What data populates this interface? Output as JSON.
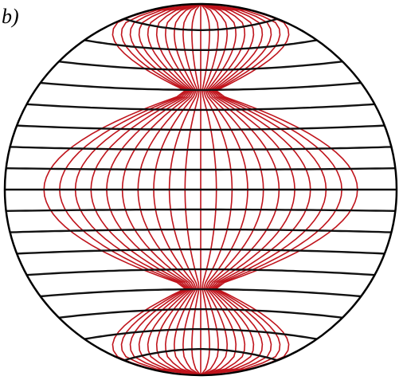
{
  "figure": {
    "panel_label": "b)",
    "colors": {
      "background": "#ffffff",
      "outline": "#000000",
      "black_lines": "#111111",
      "red_lines": "#c0141c"
    },
    "families": {
      "red_field_lines": {
        "line_count": 21,
        "waist_narrow": 0.72,
        "pole_pinch": 0.94
      },
      "black_latitude_lines": {
        "line_count": 17,
        "bulge": 0.11
      }
    }
  }
}
